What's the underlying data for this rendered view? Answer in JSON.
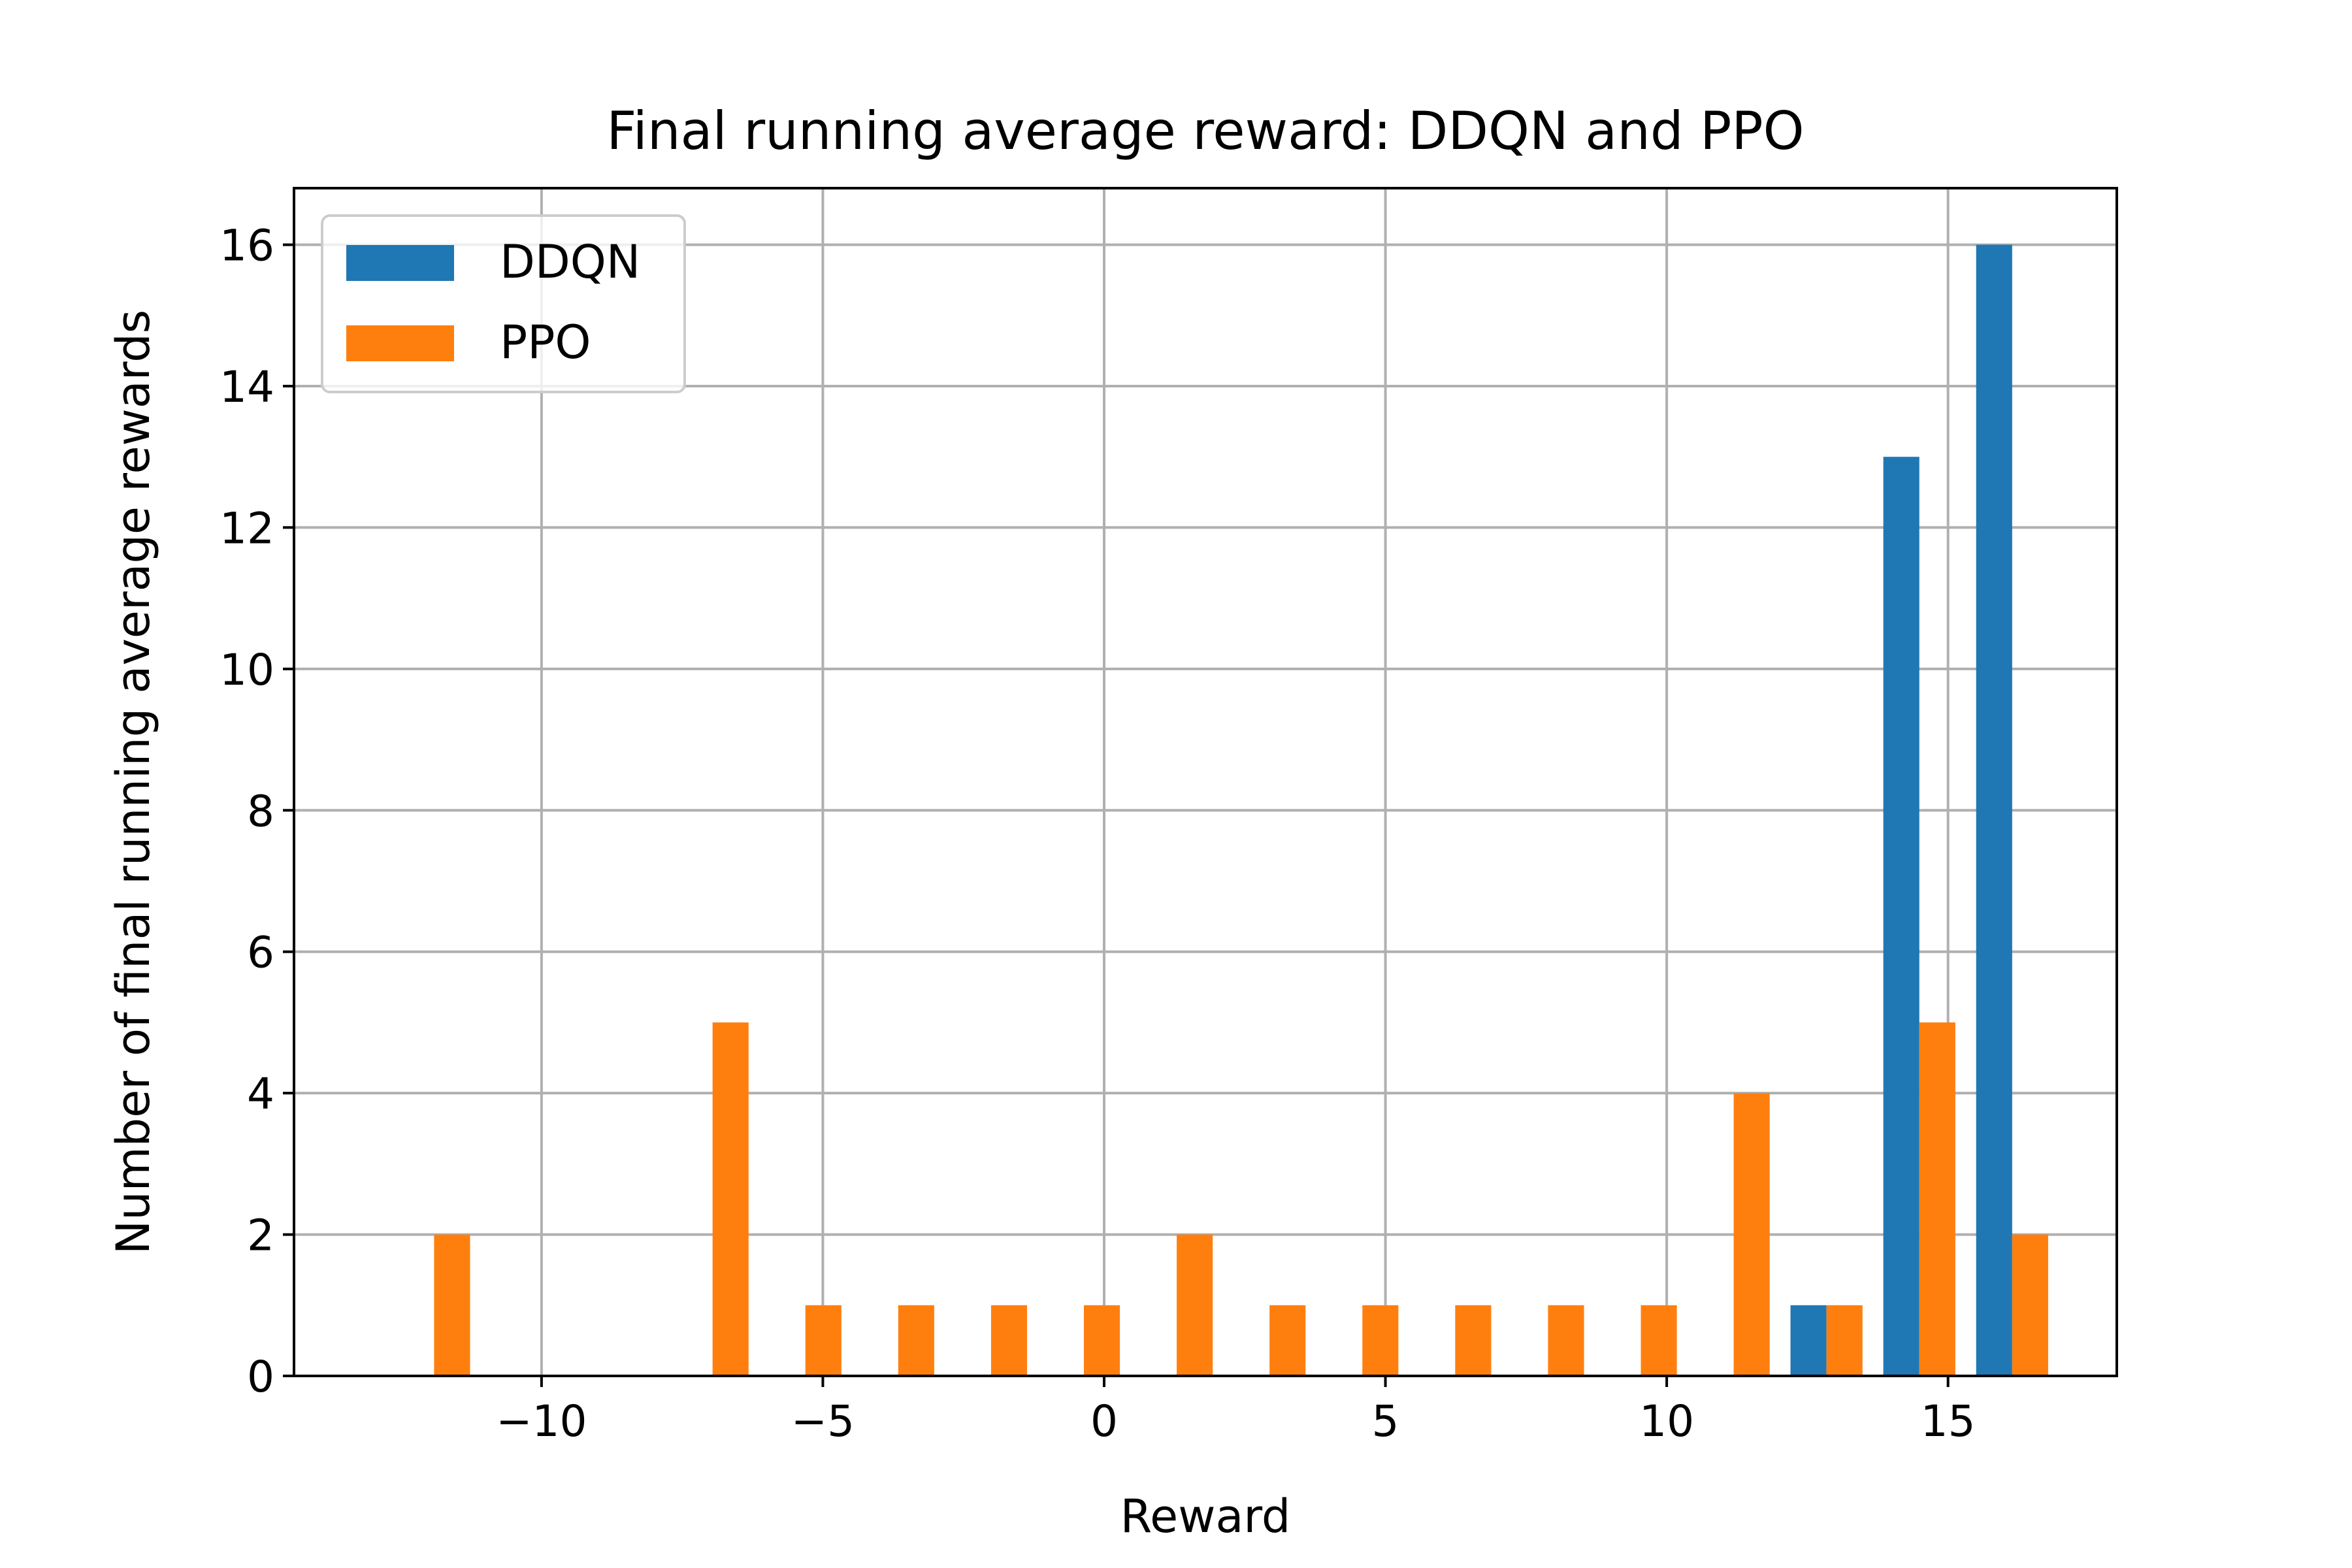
{
  "chart_data": {
    "type": "bar",
    "title": "Final running average reward: DDQN and PPO",
    "xlabel": "Reward",
    "ylabel": "Number of final running average rewards",
    "xlim": [
      -14.4,
      18
    ],
    "ylim": [
      0,
      16.8
    ],
    "grid": true,
    "legend_position": "top-left",
    "xticks": [
      -10,
      -5,
      0,
      5,
      10,
      15
    ],
    "xtick_labels": [
      "−10",
      "−5",
      "0",
      "5",
      "10",
      "15"
    ],
    "yticks": [
      0,
      2,
      4,
      6,
      8,
      10,
      12,
      14,
      16
    ],
    "ytick_labels": [
      "0",
      "2",
      "4",
      "6",
      "8",
      "10",
      "12",
      "14",
      "16"
    ],
    "bins": [
      [
        -12.55,
        -11.91
      ],
      [
        -10.9,
        -10.26
      ],
      [
        -9.25,
        -8.61
      ],
      [
        -7.6,
        -6.96
      ],
      [
        -5.95,
        -5.31
      ],
      [
        -4.3,
        -3.66
      ],
      [
        -2.65,
        -2.01
      ],
      [
        -1.0,
        -0.36
      ],
      [
        0.65,
        1.29
      ],
      [
        2.3,
        2.94
      ],
      [
        3.95,
        4.59
      ],
      [
        5.6,
        6.24
      ],
      [
        7.25,
        7.89
      ],
      [
        8.9,
        9.54
      ],
      [
        10.55,
        11.19
      ],
      [
        12.2,
        12.84
      ],
      [
        13.85,
        14.49
      ],
      [
        15.5,
        16.14
      ]
    ],
    "series": [
      {
        "name": "DDQN",
        "color": "#1f77b4",
        "values": [
          0,
          0,
          0,
          0,
          0,
          0,
          0,
          0,
          0,
          0,
          0,
          0,
          0,
          0,
          0,
          1,
          13,
          16
        ]
      },
      {
        "name": "PPO",
        "color": "#ff7f0e",
        "values": [
          2,
          0,
          0,
          5,
          1,
          1,
          1,
          1,
          2,
          1,
          1,
          1,
          1,
          1,
          4,
          1,
          5,
          2
        ]
      }
    ]
  }
}
